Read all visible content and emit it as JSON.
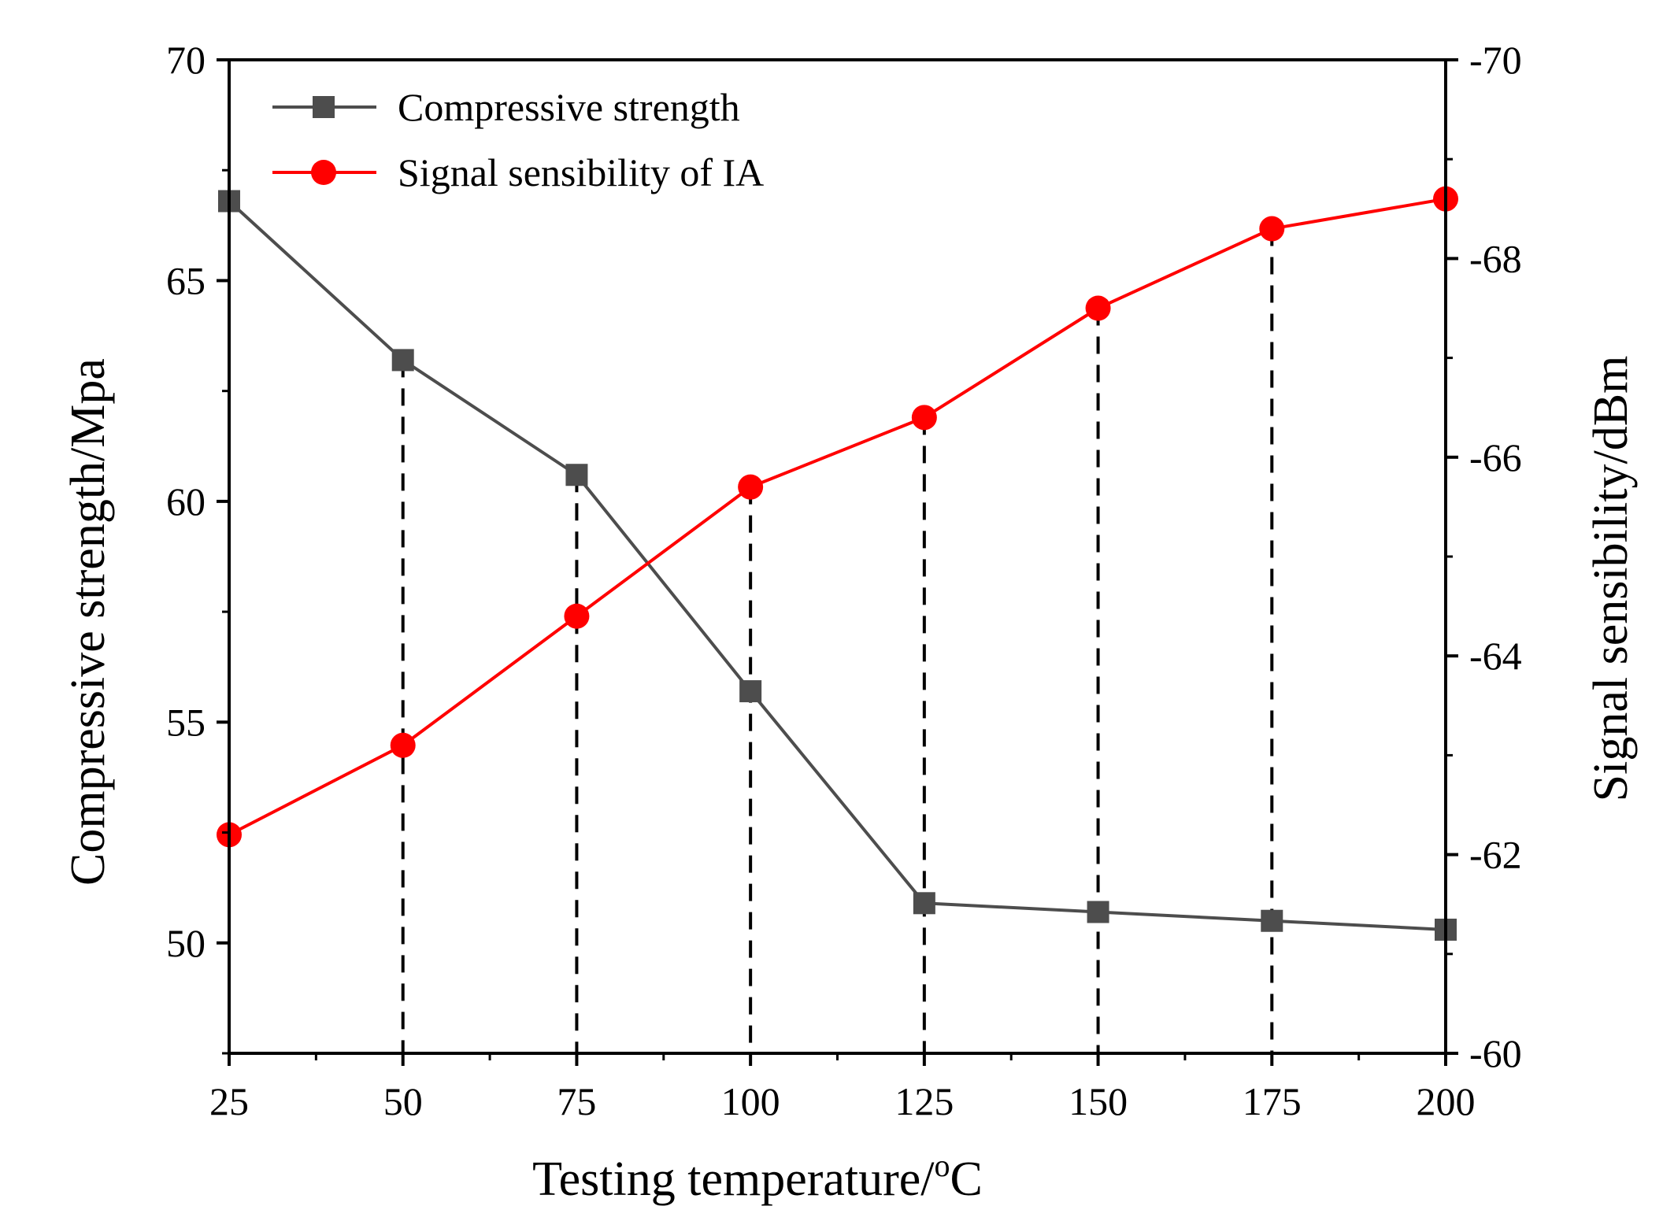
{
  "chart_data": {
    "type": "line",
    "title": "",
    "xlabel": "Testing temperature/",
    "xlabel_sup": "o",
    "xlabel_unit": "C",
    "ylabel_left": "Compressive strength/Mpa",
    "ylabel_right": "Signal sensibility/dBm",
    "x": [
      25,
      50,
      75,
      100,
      125,
      150,
      175,
      200
    ],
    "xlim": [
      25,
      200
    ],
    "xticks": [
      "25",
      "50",
      "75",
      "100",
      "125",
      "150",
      "175",
      "200"
    ],
    "ylim_left": [
      47.5,
      70
    ],
    "yticks_left": [
      "50",
      "55",
      "60",
      "65",
      "70"
    ],
    "ylim_right": [
      -60,
      -70
    ],
    "yticks_right": [
      "-60",
      "-62",
      "-64",
      "-66",
      "-68",
      "-70"
    ],
    "series": [
      {
        "name": "Compressive strength",
        "axis": "left",
        "marker": "square",
        "color": "#4d4d4d",
        "values": [
          66.8,
          63.2,
          60.6,
          55.7,
          50.9,
          50.7,
          50.5,
          50.3
        ]
      },
      {
        "name": "Signal sensibility of IA",
        "axis": "right",
        "marker": "circle",
        "color": "#ff0000",
        "values": [
          -62.2,
          -63.1,
          -64.4,
          -65.7,
          -66.4,
          -67.5,
          -68.3,
          -68.6
        ]
      }
    ],
    "dropline_color": "#000000",
    "legend_position": "top-left"
  }
}
